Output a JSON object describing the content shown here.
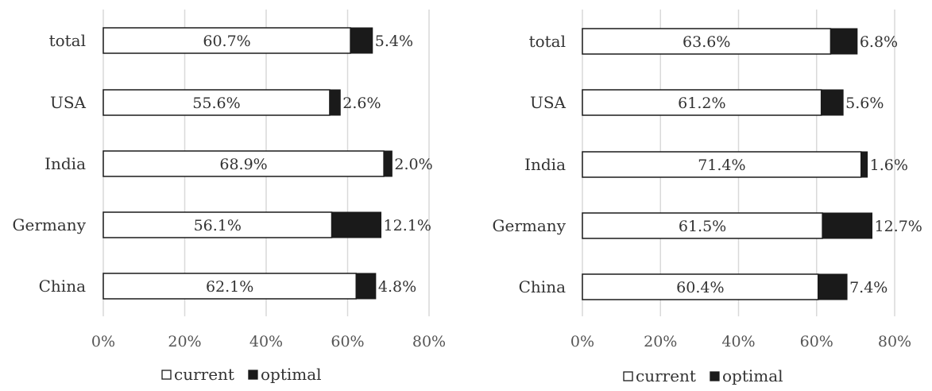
{
  "chart_data": [
    {
      "type": "bar",
      "stacked": true,
      "orientation": "horizontal",
      "categories": [
        "total",
        "USA",
        "India",
        "Germany",
        "China"
      ],
      "series": [
        {
          "name": "current",
          "values": [
            60.7,
            55.6,
            68.9,
            56.1,
            62.1
          ],
          "labels": [
            "60.7%",
            "55.6%",
            "68.9%",
            "56.1%",
            "62.1%"
          ],
          "color": "#ffffff"
        },
        {
          "name": "optimal",
          "values": [
            5.4,
            2.6,
            2.0,
            12.1,
            4.8
          ],
          "labels": [
            "5.4%",
            "2.6%",
            "2.0%",
            "12.1%",
            "4.8%"
          ],
          "color": "#1a1a1a"
        }
      ],
      "x_ticks": [
        "0%",
        "20%",
        "40%",
        "60%",
        "80%"
      ],
      "xlim": [
        0,
        80
      ],
      "grid": true,
      "legend": "bottom"
    },
    {
      "type": "bar",
      "stacked": true,
      "orientation": "horizontal",
      "categories": [
        "total",
        "USA",
        "India",
        "Germany",
        "China"
      ],
      "series": [
        {
          "name": "current",
          "values": [
            63.6,
            61.2,
            71.4,
            61.5,
            60.4
          ],
          "labels": [
            "63.6%",
            "61.2%",
            "71.4%",
            "61.5%",
            "60.4%"
          ],
          "color": "#ffffff"
        },
        {
          "name": "optimal",
          "values": [
            6.8,
            5.6,
            1.6,
            12.7,
            7.4
          ],
          "labels": [
            "6.8%",
            "5.6%",
            "1.6%",
            "12.7%",
            "7.4%"
          ],
          "color": "#1a1a1a"
        }
      ],
      "x_ticks": [
        "0%",
        "20%",
        "40%",
        "60%",
        "80%"
      ],
      "xlim": [
        0,
        80
      ],
      "grid": true,
      "legend": "bottom"
    }
  ]
}
